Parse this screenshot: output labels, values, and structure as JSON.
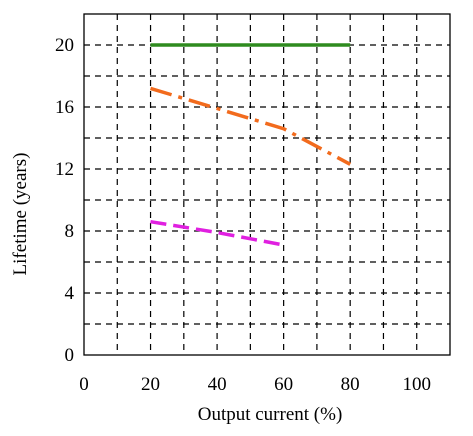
{
  "chart_data": {
    "type": "line",
    "title": "",
    "xlabel": "Output current (%)",
    "ylabel": "Lifetime (years)",
    "xlim": [
      0,
      110
    ],
    "ylim": [
      0,
      22
    ],
    "xticks": [
      0,
      20,
      40,
      60,
      80,
      100
    ],
    "yticks": [
      0,
      4,
      8,
      12,
      16,
      20
    ],
    "x_gridlines": [
      10,
      20,
      30,
      40,
      50,
      60,
      70,
      80,
      90,
      100
    ],
    "y_gridlines": [
      2,
      4,
      6,
      8,
      10,
      12,
      14,
      16,
      18,
      20
    ],
    "grid": true,
    "grid_style": "dashed",
    "legend": "none",
    "series": [
      {
        "x": [
          20,
          80
        ],
        "y": [
          20,
          20
        ],
        "color": "#2e8b1e",
        "dash": "solid"
      },
      {
        "x": [
          20,
          40,
          60,
          80
        ],
        "y": [
          17.2,
          15.9,
          14.6,
          12.3
        ],
        "color": "#f26b1d",
        "dash": "dash-dot"
      },
      {
        "x": [
          20,
          40,
          60
        ],
        "y": [
          8.6,
          7.9,
          7.1
        ],
        "color": "#e020e0",
        "dash": "dashed"
      }
    ]
  }
}
